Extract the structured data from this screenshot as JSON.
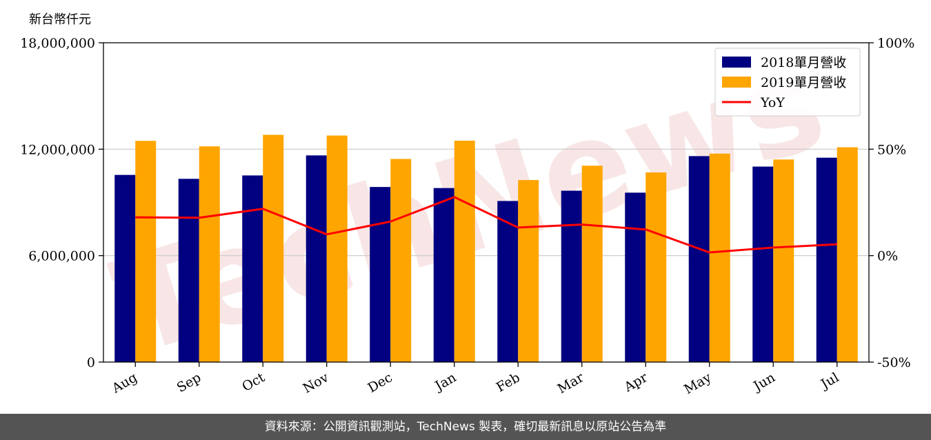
{
  "y_unit_label": "新台幣仟元",
  "footer_text": "資料來源：公開資訊觀測站，TechNews 製表，確切最新訊息以原站公告為準",
  "watermark_text": "TechNews",
  "colors": {
    "series_2018": "#000080",
    "series_2019": "#FFA500",
    "yoy_line": "#FF0000",
    "footer_bg": "#545454",
    "watermark": "#F3D2D2"
  },
  "chart_data": {
    "type": "bar",
    "categories": [
      "Aug",
      "Sep",
      "Oct",
      "Nov",
      "Dec",
      "Jan",
      "Feb",
      "Mar",
      "Apr",
      "May",
      "Jun",
      "Jul"
    ],
    "series": [
      {
        "name": "2018單月營收",
        "type": "bar",
        "axis": "left",
        "values": [
          10550000,
          10330000,
          10520000,
          11650000,
          9870000,
          9810000,
          9080000,
          9660000,
          9550000,
          11610000,
          11020000,
          11520000
        ]
      },
      {
        "name": "2019單月營收",
        "type": "bar",
        "axis": "left",
        "values": [
          12470000,
          12160000,
          12810000,
          12770000,
          11450000,
          12480000,
          10260000,
          11070000,
          10690000,
          11750000,
          11420000,
          12110000
        ]
      },
      {
        "name": "YoY",
        "type": "line",
        "axis": "right",
        "values": [
          18.0,
          17.8,
          22.0,
          10.0,
          16.0,
          27.5,
          13.2,
          14.6,
          12.3,
          1.5,
          3.8,
          5.3
        ]
      }
    ],
    "y_left": {
      "ylim": [
        0,
        18000000
      ],
      "ticks": [
        0,
        6000000,
        12000000,
        18000000
      ],
      "tick_labels": [
        "0",
        "6,000,000",
        "12,000,000",
        "18,000,000"
      ]
    },
    "y_right": {
      "ylim": [
        -50,
        100
      ],
      "ticks": [
        -50,
        0,
        50,
        100
      ],
      "tick_labels": [
        "-50%",
        "0%",
        "50%",
        "100%"
      ]
    },
    "grid": "horizontal",
    "legend": "top-right"
  }
}
